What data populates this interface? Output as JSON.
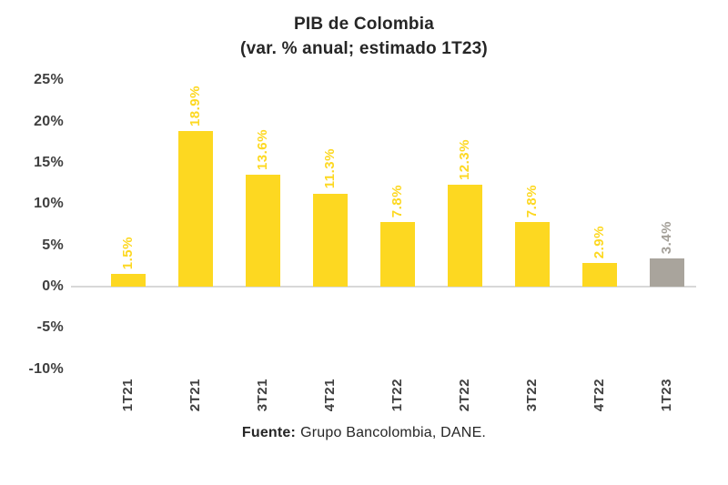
{
  "title": {
    "line1": "PIB de Colombia",
    "line2": "(var. % anual; estimado 1T23)"
  },
  "footer": {
    "label": "Fuente:",
    "text": "Grupo Bancolombia, DANE."
  },
  "colors": {
    "bar_primary": "#FDD821",
    "bar_estimate": "#A9A49C",
    "value_label": "#FDD821",
    "value_label_estimate": "#A39F98",
    "axis_text": "#3F3F3F",
    "baseline": "#D8D8D8",
    "title_text": "#262626"
  },
  "chart_data": {
    "type": "bar",
    "title": "PIB de Colombia (var. % anual; estimado 1T23)",
    "xlabel": "",
    "ylabel": "",
    "categories": [
      "1T21",
      "2T21",
      "3T21",
      "4T21",
      "1T22",
      "2T22",
      "3T22",
      "4T22",
      "1T23"
    ],
    "values": [
      1.5,
      18.9,
      13.6,
      11.3,
      7.8,
      12.3,
      7.8,
      2.9,
      3.4
    ],
    "labels": [
      "1.5%",
      "18.9%",
      "13.6%",
      "11.3%",
      "7.8%",
      "12.3%",
      "7.8%",
      "2.9%",
      "3.4%"
    ],
    "estimate_index": 8,
    "estimated_category": "1T23",
    "ylim": [
      -10,
      25
    ],
    "yticks": [
      {
        "label": "25%",
        "value": 25
      },
      {
        "label": "20%",
        "value": 20
      },
      {
        "label": "15%",
        "value": 15
      },
      {
        "label": "10%",
        "value": 10
      },
      {
        "label": "5%",
        "value": 5
      },
      {
        "label": "0%",
        "value": 0
      },
      {
        "label": "-5%",
        "value": -5
      },
      {
        "label": "-10%",
        "value": -10
      }
    ],
    "grid": false,
    "legend": "none"
  }
}
